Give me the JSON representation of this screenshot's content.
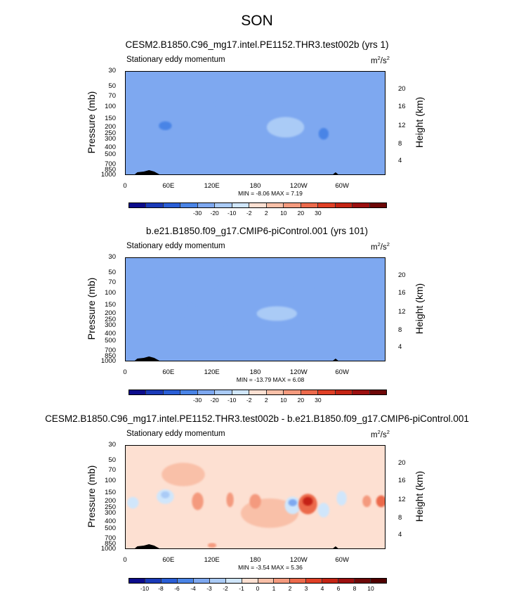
{
  "page": {
    "title": "SON"
  },
  "chart_data": [
    {
      "type": "heatmap",
      "title": "CESM2.B1850.C96_mg17.intel.PE1152.THR3.test002b (yrs 1)",
      "left_string": "Stationary eddy momentum",
      "units_base": "m",
      "units_exp1": "2",
      "units_mid": "/s",
      "units_exp2": "2",
      "ylabel": "Pressure (mb)",
      "ylabel_right": "Height (km)",
      "yticks": [
        "30",
        "50",
        "70",
        "100",
        "150",
        "200",
        "250",
        "300",
        "400",
        "500",
        "700",
        "850",
        "1000"
      ],
      "yticks_right": [
        "20",
        "16",
        "12",
        "8",
        "4"
      ],
      "xticks": [
        "0",
        "60E",
        "120E",
        "180",
        "120W",
        "60W"
      ],
      "min_max": "MIN = -8.06  MAX =  7.19",
      "min": -8.06,
      "max": 7.19,
      "colorbar_labels": [
        "-30",
        "-20",
        "-10",
        "-2",
        "2",
        "10",
        "20",
        "30"
      ],
      "colorbar_levels": [
        -30,
        -20,
        -10,
        -2,
        2,
        10,
        20,
        30
      ],
      "features": [
        {
          "lon": 220,
          "p": 190,
          "value": 6.5,
          "rx": 14,
          "ry": 0.18
        },
        {
          "lon": 222,
          "p": 200,
          "value": 3,
          "rx": 26,
          "ry": 0.35
        },
        {
          "lon": 55,
          "p": 190,
          "value": -3,
          "rx": 9,
          "ry": 0.15
        },
        {
          "lon": 275,
          "p": 250,
          "value": -2.5,
          "rx": 7,
          "ry": 0.2
        },
        {
          "lon": 20,
          "p": 80,
          "value": 1.5,
          "rx": 25,
          "ry": 0.5
        },
        {
          "lon": 170,
          "p": 90,
          "value": 1.5,
          "rx": 50,
          "ry": 0.4
        },
        {
          "lon": 80,
          "p": 300,
          "value": 1.2,
          "rx": 20,
          "ry": 0.35
        },
        {
          "lon": 300,
          "p": 150,
          "value": 1.2,
          "rx": 20,
          "ry": 0.3
        },
        {
          "lon": 350,
          "p": 50,
          "value": 1.2,
          "rx": 15,
          "ry": 0.3
        },
        {
          "lon": 140,
          "p": 500,
          "value": 1.2,
          "rx": 25,
          "ry": 0.3
        }
      ]
    },
    {
      "type": "heatmap",
      "title": "b.e21.B1850.f09_g17.CMIP6-piControl.001 (yrs 101)",
      "left_string": "Stationary eddy momentum",
      "units_base": "m",
      "units_exp1": "2",
      "units_mid": "/s",
      "units_exp2": "2",
      "ylabel": "Pressure (mb)",
      "ylabel_right": "Height (km)",
      "yticks": [
        "30",
        "50",
        "70",
        "100",
        "150",
        "200",
        "250",
        "300",
        "400",
        "500",
        "700",
        "850",
        "1000"
      ],
      "yticks_right": [
        "20",
        "16",
        "12",
        "8",
        "4"
      ],
      "xticks": [
        "0",
        "60E",
        "120E",
        "180",
        "120W",
        "60W"
      ],
      "min_max": "MIN = -13.79  MAX =  6.08",
      "min": -13.79,
      "max": 6.08,
      "colorbar_labels": [
        "-30",
        "-20",
        "-10",
        "-2",
        "2",
        "10",
        "20",
        "30"
      ],
      "colorbar_levels": [
        -30,
        -20,
        -10,
        -2,
        2,
        10,
        20,
        30
      ],
      "features": [
        {
          "lon": 210,
          "p": 200,
          "value": 3,
          "rx": 28,
          "ry": 0.25
        },
        {
          "lon": 90,
          "p": 180,
          "value": -1.5,
          "rx": 15,
          "ry": 0.2
        },
        {
          "lon": 70,
          "p": 160,
          "value": -1.2,
          "rx": 30,
          "ry": 0.3
        },
        {
          "lon": 20,
          "p": 80,
          "value": 1.5,
          "rx": 30,
          "ry": 0.5
        },
        {
          "lon": 180,
          "p": 90,
          "value": 1.5,
          "rx": 60,
          "ry": 0.4
        },
        {
          "lon": 300,
          "p": 80,
          "value": 1.2,
          "rx": 40,
          "ry": 0.4
        },
        {
          "lon": 130,
          "p": 400,
          "value": 1.2,
          "rx": 30,
          "ry": 0.3
        },
        {
          "lon": 270,
          "p": 300,
          "value": -1.2,
          "rx": 15,
          "ry": 0.3
        }
      ]
    },
    {
      "type": "heatmap",
      "title": "CESM2.B1850.C96_mg17.intel.PE1152.THR3.test002b - b.e21.B1850.f09_g17.CMIP6-piControl.001",
      "left_string": "Stationary eddy momentum",
      "units_base": "m",
      "units_exp1": "2",
      "units_mid": "/s",
      "units_exp2": "2",
      "ylabel": "Pressure (mb)",
      "ylabel_right": "Height (km)",
      "yticks": [
        "30",
        "50",
        "70",
        "100",
        "150",
        "200",
        "250",
        "300",
        "400",
        "500",
        "700",
        "850",
        "1000"
      ],
      "yticks_right": [
        "20",
        "16",
        "12",
        "8",
        "4"
      ],
      "xticks": [
        "0",
        "60E",
        "120E",
        "180",
        "120W",
        "60W"
      ],
      "min_max": "MIN = -3.54  MAX =  5.36",
      "min": -3.54,
      "max": 5.36,
      "colorbar_labels": [
        "-10",
        "-8",
        "-6",
        "-4",
        "-3",
        "-2",
        "-1",
        "0",
        "1",
        "2",
        "3",
        "4",
        "6",
        "8",
        "10"
      ],
      "colorbar_levels": [
        -10,
        -8,
        -6,
        -4,
        -3,
        -2,
        -1,
        0,
        1,
        2,
        3,
        4,
        6,
        8,
        10
      ],
      "features": [
        {
          "lon": 253,
          "p": 200,
          "value": 5.3,
          "rx": 7,
          "ry": 0.15
        },
        {
          "lon": 253,
          "p": 220,
          "value": 2.5,
          "rx": 13,
          "ry": 0.35
        },
        {
          "lon": 232,
          "p": 210,
          "value": -3.5,
          "rx": 6,
          "ry": 0.12
        },
        {
          "lon": 232,
          "p": 230,
          "value": -1.5,
          "rx": 11,
          "ry": 0.3
        },
        {
          "lon": 55,
          "p": 160,
          "value": -2.2,
          "rx": 6,
          "ry": 0.12
        },
        {
          "lon": 55,
          "p": 170,
          "value": -1.2,
          "rx": 12,
          "ry": 0.25
        },
        {
          "lon": 355,
          "p": 200,
          "value": 2.8,
          "rx": 7,
          "ry": 0.2
        },
        {
          "lon": 335,
          "p": 200,
          "value": 1.5,
          "rx": 6,
          "ry": 0.2
        },
        {
          "lon": 300,
          "p": 180,
          "value": -1.8,
          "rx": 7,
          "ry": 0.25
        },
        {
          "lon": 275,
          "p": 270,
          "value": -1.5,
          "rx": 8,
          "ry": 0.25
        },
        {
          "lon": 145,
          "p": 190,
          "value": 1.5,
          "rx": 5,
          "ry": 0.25
        },
        {
          "lon": 180,
          "p": 200,
          "value": 1.2,
          "rx": 8,
          "ry": 0.25
        },
        {
          "lon": 10,
          "p": 210,
          "value": -1.2,
          "rx": 8,
          "ry": 0.2
        },
        {
          "lon": 100,
          "p": 200,
          "value": 1.2,
          "rx": 8,
          "ry": 0.3
        },
        {
          "lon": 120,
          "p": 900,
          "value": 1.5,
          "rx": 6,
          "ry": 0.08
        },
        {
          "lon": 200,
          "p": 300,
          "value": 0.6,
          "rx": 40,
          "ry": 0.5
        },
        {
          "lon": 80,
          "p": 80,
          "value": 0.6,
          "rx": 30,
          "ry": 0.4
        }
      ]
    }
  ],
  "colorbar_palette_a": [
    "#0c0c8c",
    "#1a3ab8",
    "#2a5ed6",
    "#4a84e6",
    "#7ea8f0",
    "#aacbf6",
    "#d0e6fb",
    "#fde0d2",
    "#f9c0a8",
    "#f49a7e",
    "#ec6a4c",
    "#e04026",
    "#c42414",
    "#9c1010",
    "#6e0808"
  ],
  "colorbar_palette_b": [
    "#0c0c8c",
    "#1a3ab8",
    "#2a5ed6",
    "#4a84e6",
    "#7ea8f0",
    "#aacbf6",
    "#d0e6fb",
    "#fde0d2",
    "#f9c0a8",
    "#f49a7e",
    "#ec6a4c",
    "#e04026",
    "#c42414",
    "#9c1010",
    "#6e0808",
    "#500000"
  ]
}
